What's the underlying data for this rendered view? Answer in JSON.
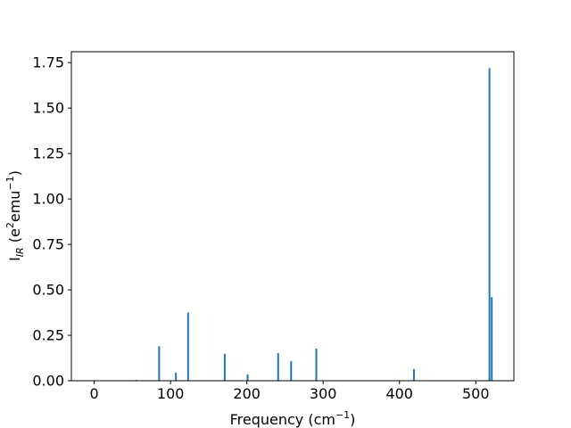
{
  "chart_data": {
    "type": "bar",
    "title": "",
    "xlabel": {
      "prefix": "Frequency (cm",
      "superscript": "−1",
      "suffix": ")"
    },
    "ylabel": {
      "prefix": "I",
      "subscript": "IR",
      "middle": " (e",
      "superscript1": "2",
      "middle2": "emu",
      "superscript2": "−1",
      "suffix": ")"
    },
    "xlim": [
      -30,
      550
    ],
    "ylim": [
      0,
      1.81
    ],
    "xticks": [
      0,
      100,
      200,
      300,
      400,
      500
    ],
    "xtick_labels": [
      "0",
      "100",
      "200",
      "300",
      "400",
      "500"
    ],
    "yticks": [
      0,
      0.25,
      0.5,
      0.75,
      1.0,
      1.25,
      1.5,
      1.75
    ],
    "ytick_labels": [
      "0.00",
      "0.25",
      "0.50",
      "0.75",
      "1.00",
      "1.25",
      "1.50",
      "1.75"
    ],
    "grid": false,
    "bar_color": "#1f77b4",
    "series": [
      {
        "x": [
          55,
          85,
          107,
          123,
          171,
          201,
          241,
          258,
          291,
          419,
          518,
          521
        ],
        "values": [
          0.005,
          0.19,
          0.045,
          0.375,
          0.148,
          0.035,
          0.152,
          0.108,
          0.177,
          0.065,
          1.72,
          0.46
        ]
      }
    ]
  }
}
